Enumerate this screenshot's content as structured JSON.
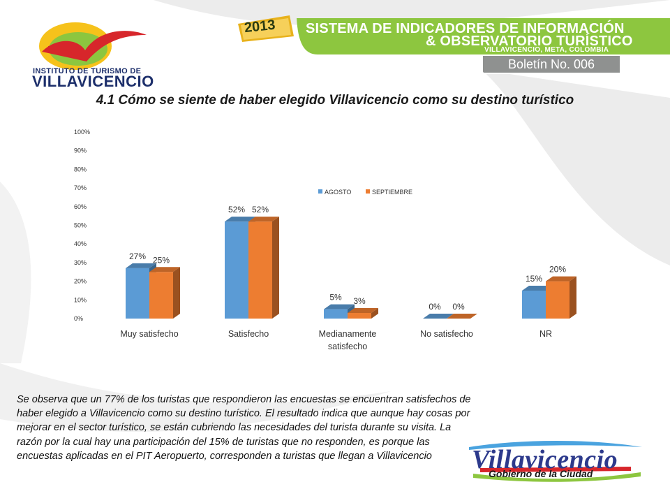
{
  "header": {
    "org_line1": "INSTITUTO DE TURISMO DE",
    "org_line2": "VILLAVICENCIO",
    "year": "2013",
    "system_line1": "SISTEMA DE INDICADORES DE INFORMACIÓN",
    "system_line2": "& OBSERVATORIO TURÍSTICO",
    "location": "VILLAVICENCIO, META, COLOMBIA",
    "bulletin": "Boletín No. 006"
  },
  "title": "4.1 Cómo se siente de haber elegido Villavicencio como su destino turístico",
  "chart_data": {
    "type": "bar",
    "categories": [
      "Muy satisfecho",
      "Satisfecho",
      "Medianamente satisfecho",
      "No satisfecho",
      "NR"
    ],
    "series": [
      {
        "name": "AGOSTO",
        "values": [
          27,
          52,
          5,
          0,
          15
        ],
        "labels": [
          "27%",
          "52%",
          "5%",
          "0%",
          "15%"
        ],
        "color": "#5b9bd5"
      },
      {
        "name": "SEPTIEMBRE",
        "values": [
          25,
          52,
          3,
          0,
          20
        ],
        "labels": [
          "25%",
          "52%",
          "3%",
          "0%",
          "20%"
        ],
        "color": "#ed7d31"
      }
    ],
    "y_ticks": [
      "0%",
      "10%",
      "20%",
      "30%",
      "40%",
      "50%",
      "60%",
      "70%",
      "80%",
      "90%",
      "100%"
    ],
    "ylim": [
      0,
      100
    ],
    "legend_position": "top-right",
    "grid": false
  },
  "paragraph": "Se observa que un 77% de los turistas que respondieron las encuestas se encuentran satisfechos de haber elegido a Villavicencio como su destino turístico. El resultado indica que aunque hay cosas por mejorar en el sector turístico, se están cubriendo las necesidades del turista durante su visita. La razón por la cual hay una participación del 15% de turistas que no responden, es porque las encuestas aplicadas en el PIT Aeropuerto, corresponden a turistas que llegan a Villavicencio",
  "footer": {
    "city_logo_text": "Villavicencio",
    "city_logo_subtext": "Gobierno de la Ciudad"
  }
}
